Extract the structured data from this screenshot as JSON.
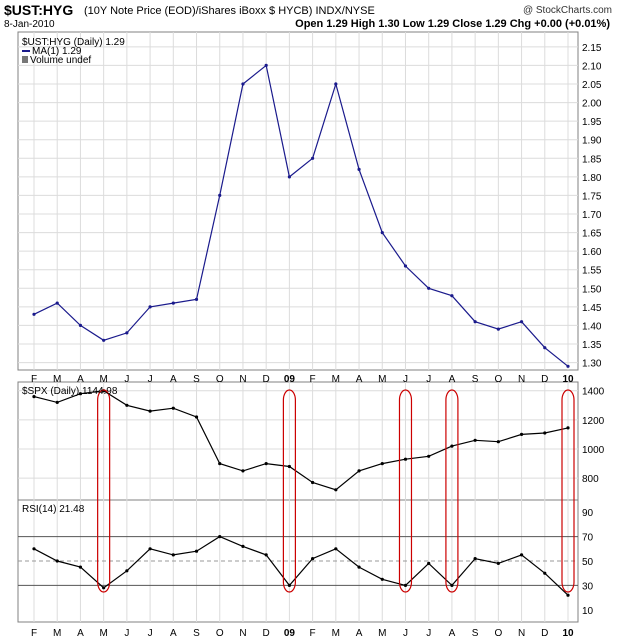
{
  "header": {
    "symbol": "$UST:HYG",
    "description": "(10Y Note Price (EOD)/iShares iBoxx $ HYCB) INDX/NYSE",
    "copyright": "@ StockCharts.com",
    "date": "8-Jan-2010",
    "ohlc": "Open 1.29  High 1.30  Low 1.29  Close 1.29  Chg +0.00 (+0.01%)"
  },
  "legend": {
    "main": "$UST:HYG (Daily) 1.29",
    "ma": "MA(1) 1.29",
    "volume": "Volume undef",
    "spx": "$SPX (Daily) 1144.98",
    "rsi": "RSI(14) 21.48"
  },
  "colors": {
    "main_line": "#1a1a8c",
    "index_line": "#000000",
    "highlight": "#cc0000",
    "grid": "#dcdcdc",
    "frame": "#808080"
  },
  "chart_data": [
    {
      "type": "line",
      "panel": "price",
      "series": [
        {
          "name": "$UST:HYG (Daily)",
          "x": [
            "Feb-08",
            "Mar-08",
            "Apr-08",
            "May-08",
            "Jun-08",
            "Jul-08",
            "Aug-08",
            "Sep-08",
            "Oct-08",
            "Nov-08",
            "Dec-08",
            "Jan-09",
            "Feb-09",
            "Mar-09",
            "Apr-09",
            "May-09",
            "Jun-09",
            "Jul-09",
            "Aug-09",
            "Sep-09",
            "Oct-09",
            "Nov-09",
            "Dec-09",
            "Jan-10"
          ],
          "values": [
            1.43,
            1.46,
            1.4,
            1.36,
            1.38,
            1.45,
            1.46,
            1.47,
            1.75,
            2.05,
            2.1,
            1.8,
            1.85,
            2.05,
            1.82,
            1.65,
            1.56,
            1.5,
            1.48,
            1.41,
            1.39,
            1.41,
            1.34,
            1.29
          ]
        }
      ],
      "x_tick_labels": [
        "F",
        "M",
        "A",
        "M",
        "J",
        "J",
        "A",
        "S",
        "O",
        "N",
        "D",
        "09",
        "F",
        "M",
        "A",
        "M",
        "J",
        "J",
        "A",
        "S",
        "O",
        "N",
        "D",
        "10"
      ],
      "y_ticks": [
        "1.30",
        "1.35",
        "1.40",
        "1.45",
        "1.50",
        "1.55",
        "1.60",
        "1.65",
        "1.70",
        "1.75",
        "1.80",
        "1.85",
        "1.90",
        "1.95",
        "2.00",
        "2.05",
        "2.10",
        "2.15"
      ],
      "ylim": [
        1.28,
        2.19
      ],
      "grid": true
    },
    {
      "type": "line",
      "panel": "spx",
      "series": [
        {
          "name": "$SPX (Daily)",
          "x": [
            "Feb-08",
            "Mar-08",
            "Apr-08",
            "May-08",
            "Jun-08",
            "Jul-08",
            "Aug-08",
            "Sep-08",
            "Oct-08",
            "Nov-08",
            "Dec-08",
            "Jan-09",
            "Feb-09",
            "Mar-09",
            "Apr-09",
            "May-09",
            "Jun-09",
            "Jul-09",
            "Aug-09",
            "Sep-09",
            "Oct-09",
            "Nov-09",
            "Dec-09",
            "Jan-10"
          ],
          "values": [
            1360,
            1320,
            1380,
            1400,
            1300,
            1260,
            1280,
            1220,
            900,
            850,
            900,
            880,
            770,
            720,
            850,
            900,
            930,
            950,
            1020,
            1060,
            1050,
            1100,
            1110,
            1145
          ]
        }
      ],
      "y_ticks": [
        "800",
        "1000",
        "1200",
        "1400"
      ],
      "ylim": [
        650,
        1460
      ]
    },
    {
      "type": "line",
      "panel": "rsi",
      "series": [
        {
          "name": "RSI(14)",
          "x": [
            "Feb-08",
            "Mar-08",
            "Apr-08",
            "May-08",
            "Jun-08",
            "Jul-08",
            "Aug-08",
            "Sep-08",
            "Oct-08",
            "Nov-08",
            "Dec-08",
            "Jan-09",
            "Feb-09",
            "Mar-09",
            "Apr-09",
            "May-09",
            "Jun-09",
            "Jul-09",
            "Aug-09",
            "Sep-09",
            "Oct-09",
            "Nov-09",
            "Dec-09",
            "Jan-10"
          ],
          "values": [
            60,
            50,
            45,
            28,
            42,
            60,
            55,
            58,
            70,
            62,
            55,
            30,
            52,
            60,
            45,
            35,
            30,
            48,
            30,
            52,
            48,
            55,
            40,
            22
          ]
        }
      ],
      "y_ticks": [
        "10",
        "30",
        "50",
        "70",
        "90"
      ],
      "ylim": [
        0,
        100
      ],
      "reference_lines": [
        30,
        50,
        70
      ]
    }
  ]
}
